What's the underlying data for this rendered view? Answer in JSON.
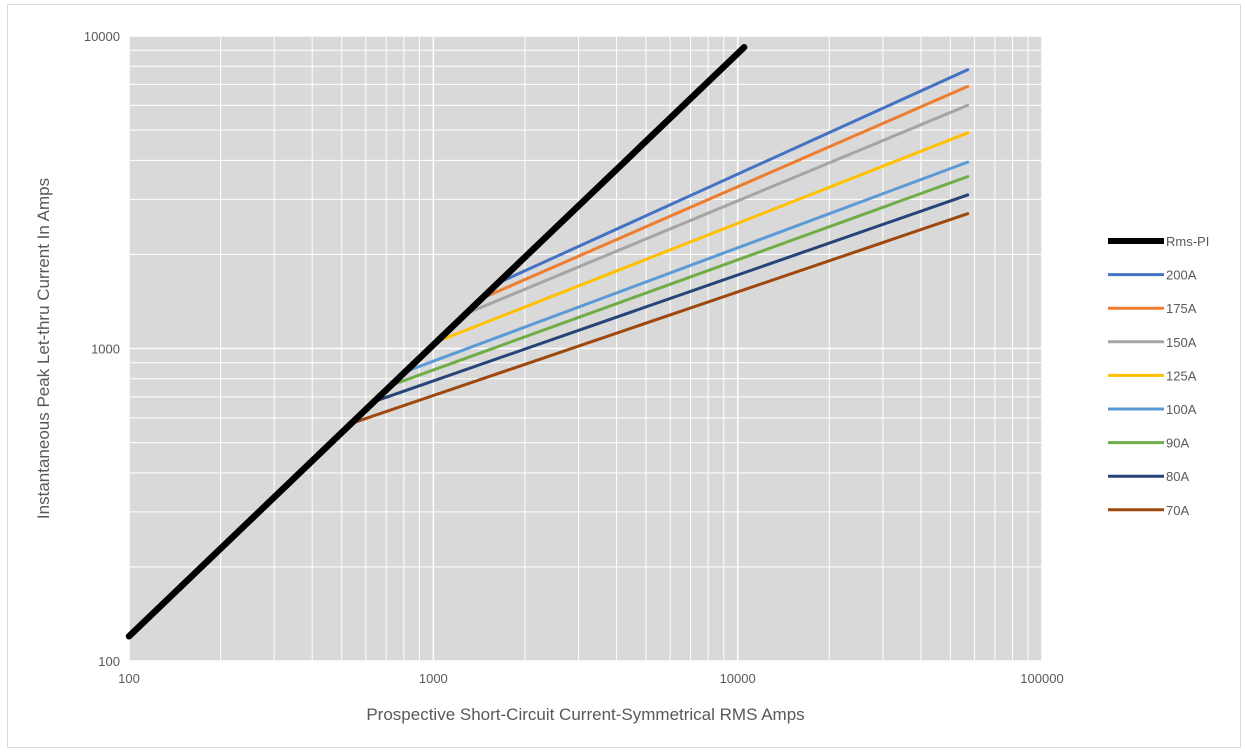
{
  "chart_data": {
    "type": "line",
    "xlabel": "Prospective Short-Circuit Current-Symmetrical RMS Amps",
    "ylabel": "Instantaneous Peak Let-thru Current In Amps",
    "xscale": "log",
    "yscale": "log",
    "xlim": [
      100,
      100000
    ],
    "ylim": [
      100,
      10000
    ],
    "x_ticks": [
      "100",
      "1000",
      "10000",
      "100000"
    ],
    "y_ticks": [
      "100",
      "1000",
      "10000"
    ],
    "grid": true,
    "legend": "right",
    "series": [
      {
        "name": "Rms-PI",
        "color": "#000000",
        "x": [
          100,
          10500
        ],
        "y": [
          120,
          9200
        ]
      },
      {
        "name": "200A",
        "color": "#4472c4",
        "x": [
          1700,
          57000
        ],
        "y": [
          1650,
          7800
        ]
      },
      {
        "name": "175A",
        "color": "#ed7d31",
        "x": [
          1450,
          57000
        ],
        "y": [
          1450,
          6900
        ]
      },
      {
        "name": "150A",
        "color": "#a5a5a5",
        "x": [
          1250,
          57000
        ],
        "y": [
          1280,
          6000
        ]
      },
      {
        "name": "125A",
        "color": "#ffc000",
        "x": [
          1020,
          57000
        ],
        "y": [
          1050,
          4900
        ]
      },
      {
        "name": "100A",
        "color": "#5b9bd5",
        "x": [
          800,
          57000
        ],
        "y": [
          840,
          3950
        ]
      },
      {
        "name": "90A",
        "color": "#70ad47",
        "x": [
          720,
          57000
        ],
        "y": [
          760,
          3550
        ]
      },
      {
        "name": "80A",
        "color": "#264478",
        "x": [
          620,
          57000
        ],
        "y": [
          670,
          3100
        ]
      },
      {
        "name": "70A",
        "color": "#9e480e",
        "x": [
          550,
          57000
        ],
        "y": [
          580,
          2700
        ]
      }
    ]
  }
}
